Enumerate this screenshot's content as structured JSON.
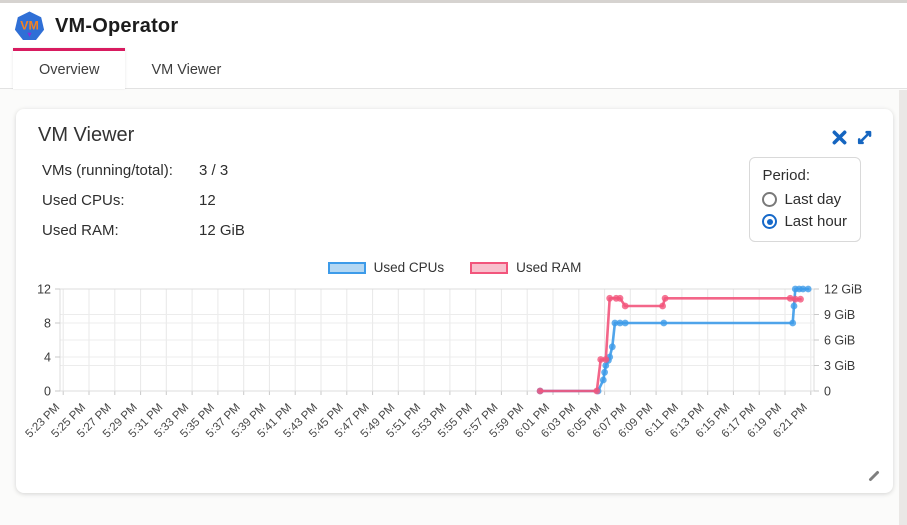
{
  "header": {
    "title": "VM-Operator",
    "logo_text": "VM"
  },
  "tabs": [
    {
      "label": "Overview",
      "active": true
    },
    {
      "label": "VM Viewer",
      "active": false
    }
  ],
  "card": {
    "title": "VM Viewer",
    "stats": [
      {
        "label": "VMs (running/total):",
        "value": "3 / 3"
      },
      {
        "label": "Used CPUs:",
        "value": "12"
      },
      {
        "label": "Used RAM:",
        "value": "12 GiB"
      }
    ],
    "period": {
      "label": "Period:",
      "options": [
        {
          "label": "Last day",
          "selected": false
        },
        {
          "label": "Last hour",
          "selected": true
        }
      ]
    }
  },
  "colors": {
    "tab_indicator": "#d81b60",
    "icon_blue": "#1565c0",
    "cpu_stroke": "#3d9be9",
    "cpu_fill": "#b3d7f3",
    "ram_stroke": "#f2557c",
    "ram_fill": "#f8c0cd",
    "logo_blue": "#2f6fd6",
    "logo_orange": "#f5831f"
  },
  "chart_data": {
    "type": "line",
    "title": "",
    "grid": true,
    "legend": {
      "position": "top-center",
      "entries": [
        {
          "label": "Used CPUs",
          "stroke": "#3d9be9",
          "fill": "#b3d7f3"
        },
        {
          "label": "Used RAM",
          "stroke": "#f2557c",
          "fill": "#f8c0cd"
        }
      ]
    },
    "x_axis": {
      "unit": "minutes after 5:23 PM (ticks every 2 min)",
      "tick_labels": [
        "5:23 PM",
        "5:25 PM",
        "5:27 PM",
        "5:29 PM",
        "5:31 PM",
        "5:33 PM",
        "5:35 PM",
        "5:37 PM",
        "5:39 PM",
        "5:41 PM",
        "5:43 PM",
        "5:45 PM",
        "5:47 PM",
        "5:49 PM",
        "5:51 PM",
        "5:53 PM",
        "5:55 PM",
        "5:57 PM",
        "5:59 PM",
        "6:01 PM",
        "6:03 PM",
        "6:05 PM",
        "6:07 PM",
        "6:09 PM",
        "6:11 PM",
        "6:13 PM",
        "6:15 PM",
        "6:17 PM",
        "6:19 PM",
        "6:21 PM"
      ],
      "domain_minutes": [
        -0.25,
        58.25
      ]
    },
    "y_left": {
      "series": "Used CPUs",
      "ticks": [
        0,
        4,
        8,
        12
      ],
      "range": [
        0,
        12
      ]
    },
    "y_right": {
      "series": "Used RAM",
      "tick_labels": [
        "0",
        "3 GiB",
        "6 GiB",
        "9 GiB",
        "12 GiB"
      ],
      "tick_values_gib": [
        0,
        3,
        6,
        9,
        12
      ],
      "range_gib": [
        0,
        12
      ]
    },
    "series": [
      {
        "name": "Used CPUs",
        "axis": "left",
        "color": "#3d9be9",
        "points_minutes_value": [
          [
            37.0,
            0
          ],
          [
            41.5,
            0
          ],
          [
            41.9,
            1.3
          ],
          [
            42.0,
            2.2
          ],
          [
            42.1,
            3.0
          ],
          [
            42.3,
            3.6
          ],
          [
            42.4,
            4.0
          ],
          [
            42.6,
            5.2
          ],
          [
            42.8,
            8
          ],
          [
            43.2,
            8
          ],
          [
            43.6,
            8
          ],
          [
            46.6,
            8
          ],
          [
            56.6,
            8
          ],
          [
            56.7,
            10
          ],
          [
            56.8,
            12
          ],
          [
            57.1,
            12
          ],
          [
            57.4,
            12
          ],
          [
            57.8,
            12
          ]
        ]
      },
      {
        "name": "Used RAM",
        "axis": "right",
        "color": "#f2557c",
        "points_minutes_value": [
          [
            37.0,
            0
          ],
          [
            41.4,
            0
          ],
          [
            41.7,
            3.7
          ],
          [
            42.1,
            3.7
          ],
          [
            42.4,
            10.9
          ],
          [
            42.9,
            10.9
          ],
          [
            43.2,
            10.9
          ],
          [
            43.6,
            10.0
          ],
          [
            46.5,
            10.0
          ],
          [
            46.7,
            10.9
          ],
          [
            56.4,
            10.9
          ],
          [
            56.8,
            10.8
          ],
          [
            57.2,
            10.8
          ]
        ]
      }
    ]
  }
}
